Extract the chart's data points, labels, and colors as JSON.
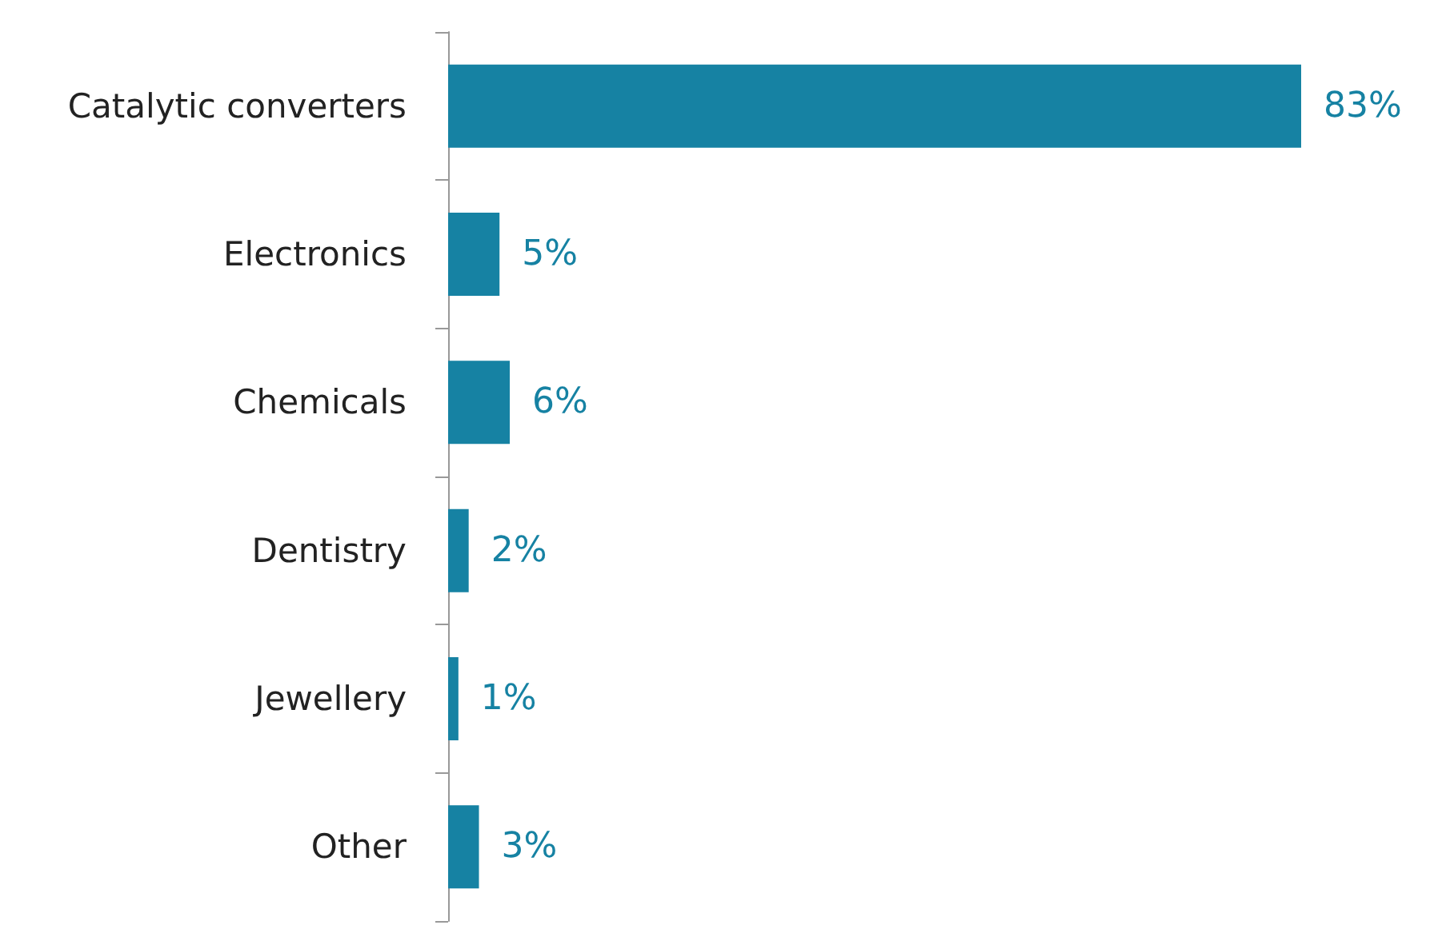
{
  "chart_data": {
    "type": "bar",
    "orientation": "horizontal",
    "categories": [
      "Catalytic converters",
      "Electronics",
      "Chemicals",
      "Dentistry",
      "Jewellery",
      "Other"
    ],
    "values": [
      83,
      5,
      6,
      2,
      1,
      3
    ],
    "value_labels": [
      "83%",
      "5%",
      "6%",
      "2%",
      "1%",
      "3%"
    ],
    "color": "#1682a3",
    "grid": false
  }
}
